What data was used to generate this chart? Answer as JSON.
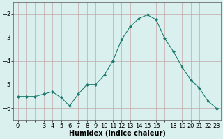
{
  "x": [
    0,
    1,
    2,
    3,
    4,
    5,
    6,
    7,
    8,
    9,
    10,
    11,
    12,
    13,
    14,
    15,
    16,
    17,
    18,
    19,
    20,
    21,
    22,
    23
  ],
  "y": [
    -5.5,
    -5.5,
    -5.5,
    -5.4,
    -5.3,
    -5.55,
    -5.9,
    -5.4,
    -5.0,
    -5.0,
    -4.6,
    -4.0,
    -3.1,
    -2.55,
    -2.2,
    -2.05,
    -2.25,
    -3.05,
    -3.6,
    -4.25,
    -4.8,
    -5.15,
    -5.7,
    -6.0
  ],
  "line_color": "#1a7a6e",
  "marker": "D",
  "marker_size": 2,
  "bg_color": "#d9f0ee",
  "grid_color_h": "#c4a8a8",
  "grid_color_v": "#c4a8a8",
  "xlabel": "Humidex (Indice chaleur)",
  "xlabel_fontsize": 7,
  "ylim": [
    -6.5,
    -1.5
  ],
  "xlim": [
    -0.5,
    23.5
  ],
  "yticks": [
    -6,
    -5,
    -4,
    -3,
    -2
  ],
  "xticks_labeled": [
    0,
    3,
    4,
    5,
    6,
    7,
    8,
    9,
    10,
    11,
    12,
    13,
    14,
    15,
    16,
    18,
    19,
    20,
    21,
    22,
    23
  ],
  "xticks_all": [
    0,
    1,
    2,
    3,
    4,
    5,
    6,
    7,
    8,
    9,
    10,
    11,
    12,
    13,
    14,
    15,
    16,
    17,
    18,
    19,
    20,
    21,
    22,
    23
  ],
  "tick_fontsize": 6
}
